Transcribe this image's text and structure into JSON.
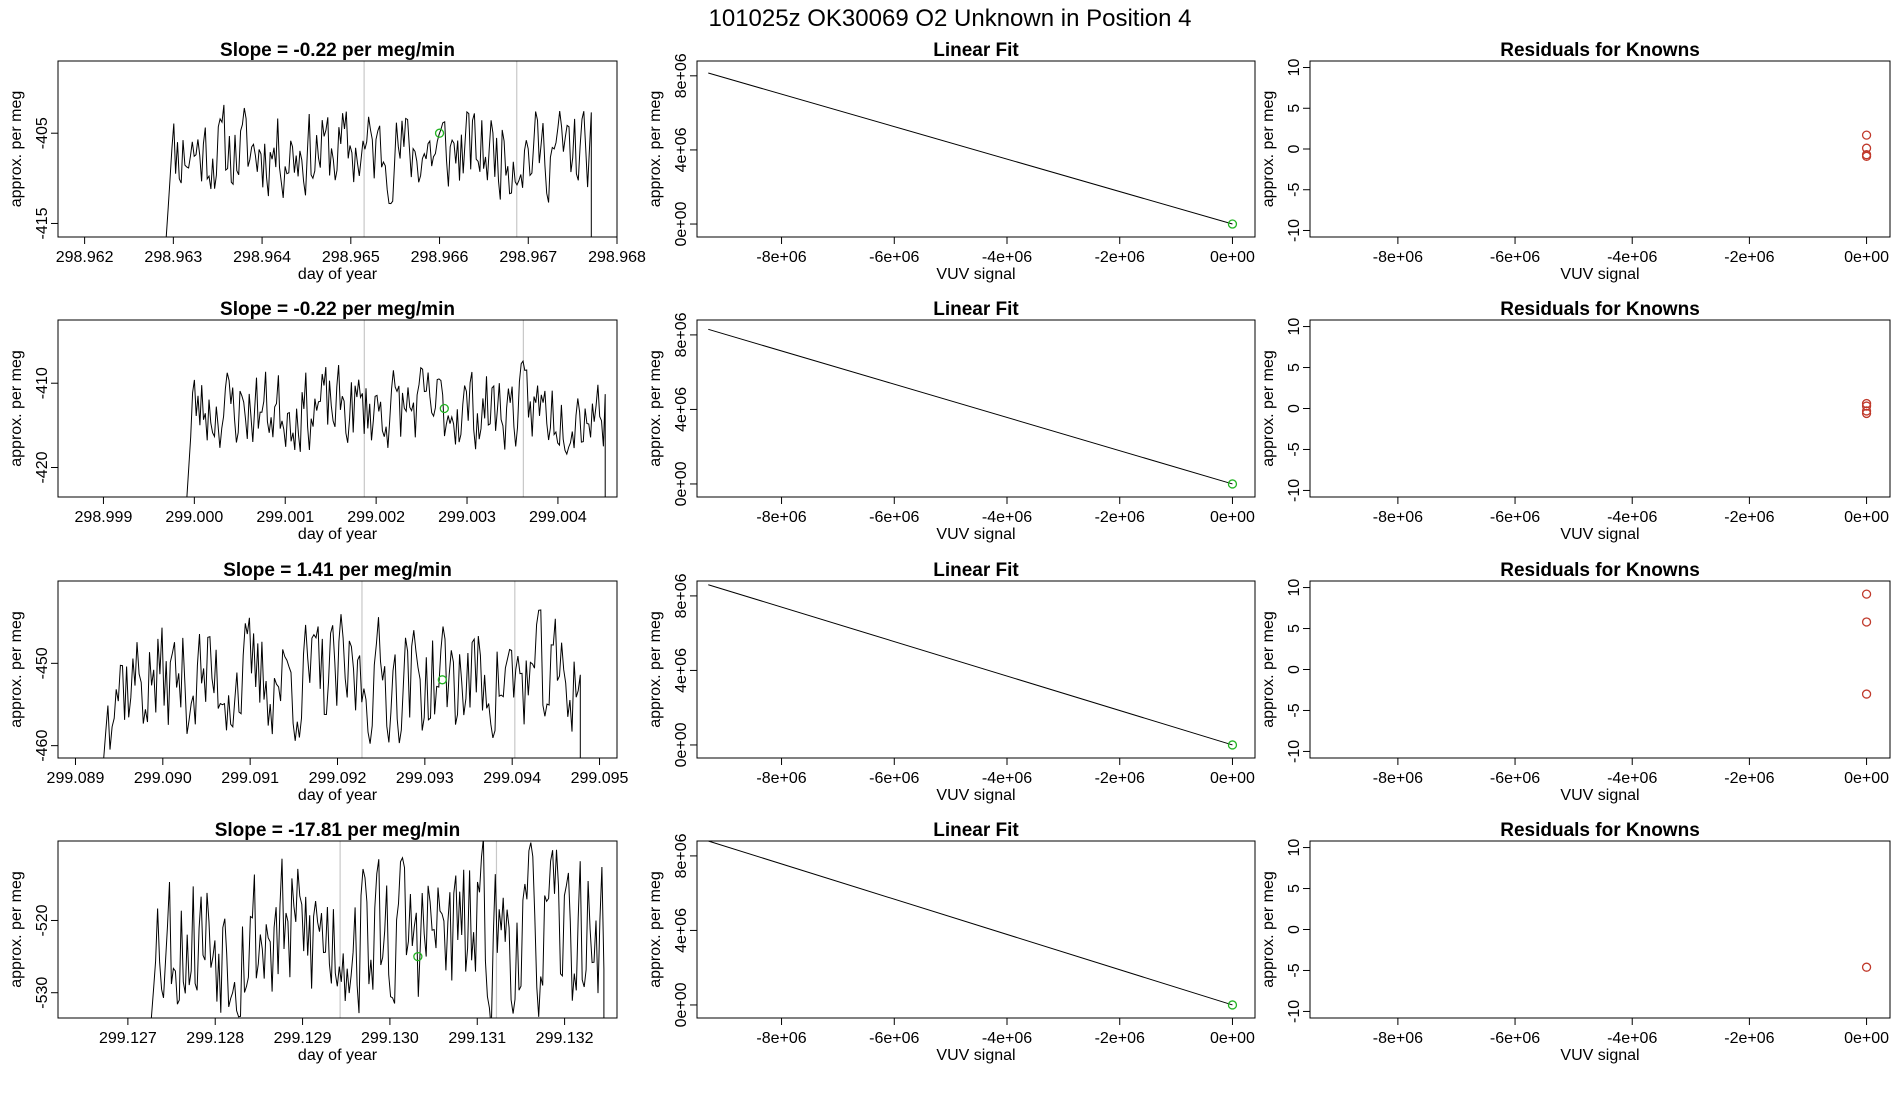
{
  "figure": {
    "title": "101025z      OK30069    O2 Unknown in Position  4"
  },
  "chart_data": [
    {
      "type": "line",
      "panel": "time-series-1",
      "title": "Slope =  -0.22  per meg/min",
      "xlabel": "day of year",
      "ylabel": "approx. per meg",
      "xlim": [
        298.9617,
        298.968
      ],
      "ylim": [
        -416.5,
        -397
      ],
      "xticks": [
        "298.962",
        "298.963",
        "298.964",
        "298.965",
        "298.966",
        "298.967",
        "298.968"
      ],
      "xtick_values": [
        298.962,
        298.963,
        298.964,
        298.965,
        298.966,
        298.967,
        298.968
      ],
      "yticks": [
        "-405",
        "-415"
      ],
      "ytick_values": [
        -405,
        -415
      ],
      "vlines": [
        298.96515,
        298.96687
      ],
      "series_start": 298.9629,
      "series_end": 298.96771,
      "base": -407,
      "amplitude": 6,
      "seed": 11,
      "marker": {
        "x": 298.966,
        "y": -405
      }
    },
    {
      "type": "line",
      "panel": "time-series-2",
      "title": "Slope =  -0.22  per meg/min",
      "xlabel": "day of year",
      "ylabel": "approx. per meg",
      "xlim": [
        298.9985,
        299.00465
      ],
      "ylim": [
        -423.5,
        -402.5
      ],
      "xticks": [
        "298.999",
        "299.000",
        "299.001",
        "299.002",
        "299.003",
        "299.004"
      ],
      "xtick_values": [
        298.999,
        299.0,
        299.001,
        299.002,
        299.003,
        299.004
      ],
      "yticks": [
        "-410",
        "-420"
      ],
      "ytick_values": [
        -410,
        -420
      ],
      "vlines": [
        299.00187,
        299.00362
      ],
      "series_start": 298.9999,
      "series_end": 299.00452,
      "base": -413,
      "amplitude": 6,
      "seed": 23,
      "marker": {
        "x": 299.00275,
        "y": -413
      }
    },
    {
      "type": "line",
      "panel": "time-series-3",
      "title": "Slope = 1.41  per meg/min",
      "xlabel": "day of year",
      "ylabel": "approx. per meg",
      "xlim": [
        299.0888,
        299.0952
      ],
      "ylim": [
        -461.5,
        -440
      ],
      "xticks": [
        "299.089",
        "299.090",
        "299.091",
        "299.092",
        "299.093",
        "299.094",
        "299.095"
      ],
      "xtick_values": [
        299.089,
        299.09,
        299.091,
        299.092,
        299.093,
        299.094,
        299.095
      ],
      "yticks": [
        "-450",
        "-460"
      ],
      "ytick_values": [
        -450,
        -460
      ],
      "vlines": [
        299.09228,
        299.09403
      ],
      "series_start": 299.0893,
      "series_end": 299.09478,
      "base": -452,
      "amplitude": 9,
      "seed": 37,
      "marker": {
        "x": 299.0932,
        "y": -452
      }
    },
    {
      "type": "line",
      "panel": "time-series-4",
      "title": "Slope =  -17.81  per meg/min",
      "xlabel": "day of year",
      "ylabel": "approx. per meg",
      "xlim": [
        299.1262,
        299.1326
      ],
      "ylim": [
        -533.5,
        -509
      ],
      "xticks": [
        "299.127",
        "299.128",
        "299.129",
        "299.130",
        "299.131",
        "299.132"
      ],
      "xtick_values": [
        299.127,
        299.128,
        299.129,
        299.13,
        299.131,
        299.132
      ],
      "yticks": [
        "-520",
        "-530"
      ],
      "ytick_values": [
        -520,
        -530
      ],
      "vlines": [
        299.12943,
        299.13122
      ],
      "series_start": 299.12725,
      "series_end": 299.13245,
      "base": -522,
      "amplitude": 14,
      "seed": 53,
      "marker": {
        "x": 299.13032,
        "y": -525
      }
    },
    {
      "type": "line",
      "panel": "linear-fit-1",
      "title": "Linear Fit",
      "xlabel": "VUV signal",
      "ylabel": "approx. per meg",
      "xlim": [
        -9500000,
        400000
      ],
      "ylim": [
        -700000,
        8800000
      ],
      "xticks": [
        "-8e+06",
        "-6e+06",
        "-4e+06",
        "-2e+06",
        "0e+00"
      ],
      "xtick_values": [
        -8000000,
        -6000000,
        -4000000,
        -2000000,
        0
      ],
      "yticks": [
        "0e+00",
        "4e+06",
        "8e+06"
      ],
      "ytick_values": [
        0,
        4000000,
        8000000
      ],
      "line": [
        [
          -9300000,
          8150000
        ],
        [
          0,
          0
        ]
      ],
      "points": [
        [
          0,
          0
        ]
      ]
    },
    {
      "type": "line",
      "panel": "linear-fit-2",
      "title": "Linear Fit",
      "xlabel": "VUV signal",
      "ylabel": "approx. per meg",
      "xlim": [
        -9500000,
        400000
      ],
      "ylim": [
        -700000,
        8800000
      ],
      "xticks": [
        "-8e+06",
        "-6e+06",
        "-4e+06",
        "-2e+06",
        "0e+00"
      ],
      "xtick_values": [
        -8000000,
        -6000000,
        -4000000,
        -2000000,
        0
      ],
      "yticks": [
        "0e+00",
        "4e+06",
        "8e+06"
      ],
      "ytick_values": [
        0,
        4000000,
        8000000
      ],
      "line": [
        [
          -9300000,
          8300000
        ],
        [
          0,
          0
        ]
      ],
      "points": [
        [
          0,
          0
        ]
      ]
    },
    {
      "type": "line",
      "panel": "linear-fit-3",
      "title": "Linear Fit",
      "xlabel": "VUV signal",
      "ylabel": "approx. per meg",
      "xlim": [
        -9500000,
        400000
      ],
      "ylim": [
        -700000,
        8800000
      ],
      "xticks": [
        "-8e+06",
        "-6e+06",
        "-4e+06",
        "-2e+06",
        "0e+00"
      ],
      "xtick_values": [
        -8000000,
        -6000000,
        -4000000,
        -2000000,
        0
      ],
      "yticks": [
        "0e+00",
        "4e+06",
        "8e+06"
      ],
      "ytick_values": [
        0,
        4000000,
        8000000
      ],
      "line": [
        [
          -9300000,
          8600000
        ],
        [
          0,
          0
        ]
      ],
      "points": [
        [
          0,
          0
        ]
      ]
    },
    {
      "type": "line",
      "panel": "linear-fit-4",
      "title": "Linear Fit",
      "xlabel": "VUV signal",
      "ylabel": "approx. per meg",
      "xlim": [
        -9500000,
        400000
      ],
      "ylim": [
        -700000,
        8800000
      ],
      "xticks": [
        "-8e+06",
        "-6e+06",
        "-4e+06",
        "-2e+06",
        "0e+00"
      ],
      "xtick_values": [
        -8000000,
        -6000000,
        -4000000,
        -2000000,
        0
      ],
      "yticks": [
        "0e+00",
        "4e+06",
        "8e+06"
      ],
      "ytick_values": [
        0,
        4000000,
        8000000
      ],
      "line": [
        [
          -9300000,
          8800000
        ],
        [
          0,
          0
        ]
      ],
      "points": [
        [
          0,
          0
        ]
      ]
    },
    {
      "type": "scatter",
      "panel": "residuals-1",
      "title": "Residuals for Knowns",
      "xlabel": "VUV signal",
      "ylabel": "approx. per meg",
      "xlim": [
        -9500000,
        400000
      ],
      "ylim": [
        -10.8,
        10.8
      ],
      "xticks": [
        "-8e+06",
        "-6e+06",
        "-4e+06",
        "-2e+06",
        "0e+00"
      ],
      "xtick_values": [
        -8000000,
        -6000000,
        -4000000,
        -2000000,
        0
      ],
      "yticks": [
        "-10",
        "-5",
        "0",
        "5",
        "10"
      ],
      "ytick_values": [
        -10,
        -5,
        0,
        5,
        10
      ],
      "points": [
        [
          0,
          1.7
        ],
        [
          0,
          0.1
        ],
        [
          0,
          -0.7
        ],
        [
          0,
          -0.9
        ]
      ]
    },
    {
      "type": "scatter",
      "panel": "residuals-2",
      "title": "Residuals for Knowns",
      "xlabel": "VUV signal",
      "ylabel": "approx. per meg",
      "xlim": [
        -9500000,
        400000
      ],
      "ylim": [
        -10.8,
        10.8
      ],
      "xticks": [
        "-8e+06",
        "-6e+06",
        "-4e+06",
        "-2e+06",
        "0e+00"
      ],
      "xtick_values": [
        -8000000,
        -6000000,
        -4000000,
        -2000000,
        0
      ],
      "yticks": [
        "-10",
        "-5",
        "0",
        "5",
        "10"
      ],
      "ytick_values": [
        -10,
        -5,
        0,
        5,
        10
      ],
      "points": [
        [
          0,
          0.6
        ],
        [
          0,
          0.3
        ],
        [
          0,
          -0.3
        ],
        [
          0,
          -0.6
        ]
      ]
    },
    {
      "type": "scatter",
      "panel": "residuals-3",
      "title": "Residuals for Knowns",
      "xlabel": "VUV signal",
      "ylabel": "approx. per meg",
      "xlim": [
        -9500000,
        400000
      ],
      "ylim": [
        -10.8,
        10.8
      ],
      "xticks": [
        "-8e+06",
        "-6e+06",
        "-4e+06",
        "-2e+06",
        "0e+00"
      ],
      "xtick_values": [
        -8000000,
        -6000000,
        -4000000,
        -2000000,
        0
      ],
      "yticks": [
        "-10",
        "-5",
        "0",
        "5",
        "10"
      ],
      "ytick_values": [
        -10,
        -5,
        0,
        5,
        10
      ],
      "points": [
        [
          0,
          9.2
        ],
        [
          0,
          5.8
        ],
        [
          0,
          -3.0
        ]
      ]
    },
    {
      "type": "scatter",
      "panel": "residuals-4",
      "title": "Residuals for Knowns",
      "xlabel": "VUV signal",
      "ylabel": "approx. per meg",
      "xlim": [
        -9500000,
        400000
      ],
      "ylim": [
        -10.8,
        10.8
      ],
      "xticks": [
        "-8e+06",
        "-6e+06",
        "-4e+06",
        "-2e+06",
        "0e+00"
      ],
      "xtick_values": [
        -8000000,
        -6000000,
        -4000000,
        -2000000,
        0
      ],
      "yticks": [
        "-10",
        "-5",
        "0",
        "5",
        "10"
      ],
      "ytick_values": [
        -10,
        -5,
        0,
        5,
        10
      ],
      "points": [
        [
          0,
          -4.6
        ]
      ]
    }
  ],
  "colors": {
    "series": "#000000",
    "vline": "#c8c8c8",
    "fit_marker": "#22b422",
    "residual_marker": "#c0392b"
  }
}
